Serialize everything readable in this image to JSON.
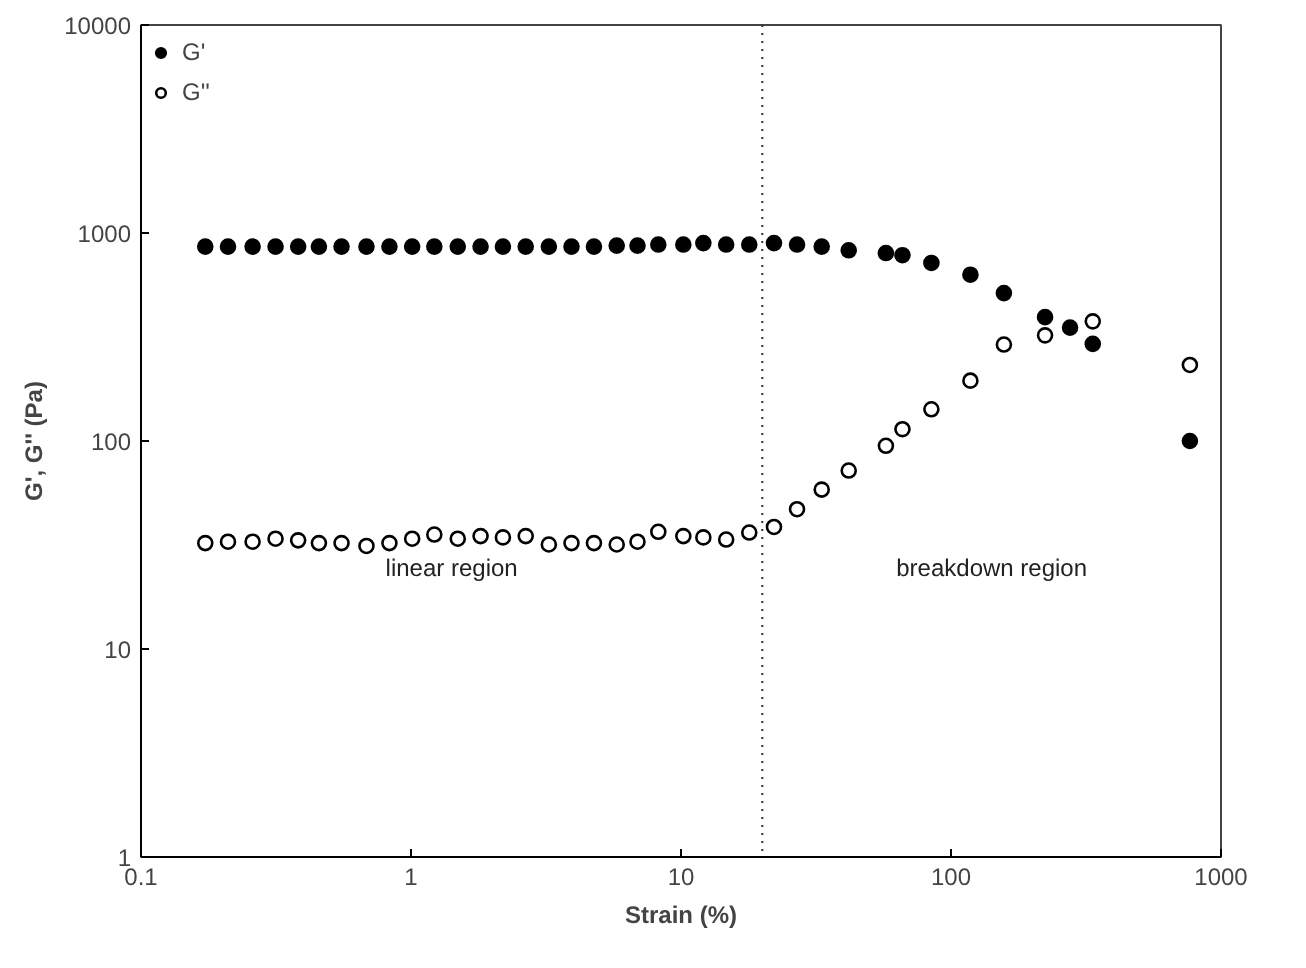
{
  "chart_data": {
    "type": "scatter",
    "xlabel": "Strain (%)",
    "ylabel": "G', G'' (Pa)",
    "log": "xy",
    "xlim": [
      0.1,
      1000
    ],
    "ylim": [
      1,
      10000
    ],
    "xticks": [
      0.1,
      1,
      10,
      100,
      1000
    ],
    "yticks": [
      1,
      10,
      100,
      1000,
      10000
    ],
    "grid": false,
    "legend": "top left",
    "marker": "circle",
    "series": [
      {
        "name": "G'",
        "color": "#000000",
        "x": [
          0.173,
          0.21,
          0.259,
          0.315,
          0.382,
          0.456,
          0.553,
          0.684,
          0.832,
          1.01,
          1.22,
          1.49,
          1.81,
          2.19,
          2.66,
          3.24,
          3.93,
          4.76,
          5.78,
          6.9,
          8.24,
          10.2,
          12.1,
          14.7,
          17.9,
          22.1,
          26.9,
          33.2,
          41.8,
          57.4,
          66.1,
          84.6,
          118,
          157,
          223,
          276,
          335,
          767
        ],
        "values": [
          860,
          860,
          860,
          860,
          860,
          860,
          860,
          860,
          860,
          860,
          860,
          860,
          860,
          860,
          860,
          860,
          860,
          860,
          870,
          870,
          880,
          880,
          894,
          880,
          880,
          894,
          880,
          860,
          826,
          801,
          782,
          718,
          630,
          514,
          394,
          351,
          293,
          100
        ]
      },
      {
        "name": "G''",
        "color": "#000000",
        "x": [
          0.173,
          0.21,
          0.259,
          0.315,
          0.382,
          0.456,
          0.553,
          0.684,
          0.832,
          1.01,
          1.22,
          1.49,
          1.81,
          2.19,
          2.66,
          3.24,
          3.93,
          4.76,
          5.78,
          6.9,
          8.24,
          10.2,
          12.1,
          14.7,
          17.9,
          22.1,
          26.9,
          33.2,
          41.8,
          57.4,
          66.1,
          84.6,
          118,
          157,
          223,
          335,
          767
        ],
        "values": [
          32.3,
          32.8,
          32.8,
          33.9,
          33.3,
          32.3,
          32.3,
          31.3,
          32.3,
          33.9,
          35.5,
          33.9,
          34.9,
          34.4,
          34.9,
          31.8,
          32.3,
          32.3,
          31.8,
          32.8,
          36.6,
          34.9,
          34.4,
          33.6,
          36.3,
          38.6,
          47,
          58.4,
          72.1,
          94.8,
          114,
          142,
          195,
          291,
          322,
          376,
          232
        ]
      }
    ],
    "ref_lines": [
      {
        "axis": "x",
        "value": 20,
        "line_style": "dotted"
      }
    ],
    "annotations": [
      "linear region",
      "breakdown region"
    ]
  }
}
